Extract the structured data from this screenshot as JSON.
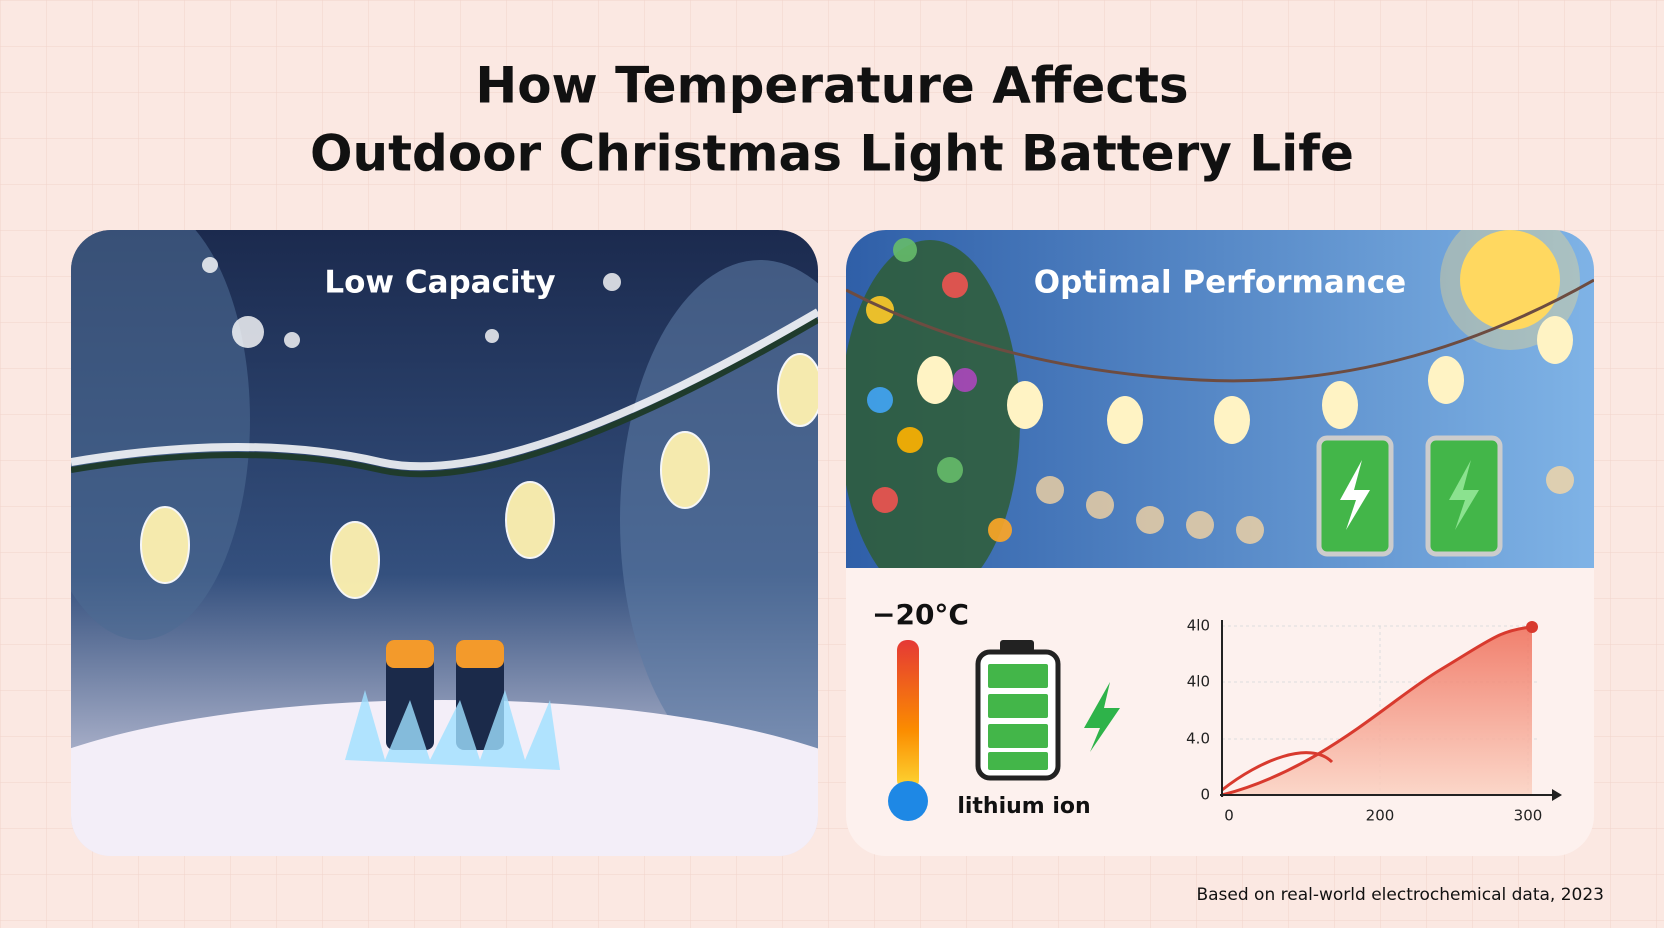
{
  "header": {
    "title_lines": [
      "How Temperature Affects",
      "Outdoor Christmas Light Battery Life"
    ]
  },
  "panels": [
    {
      "label": "Low Capacity"
    },
    {
      "label": "Optimal Performance"
    }
  ],
  "details": {
    "temperature": "−20°C",
    "battery_label": "lithium ion",
    "mini_chart": {
      "y_tick_labels": [
        "4l0",
        "4l0",
        "4.0",
        "0"
      ],
      "x_tick_labels": [
        "0",
        "200",
        "300"
      ]
    }
  },
  "footnote": "Based on real-world electrochemical data, 2023"
}
